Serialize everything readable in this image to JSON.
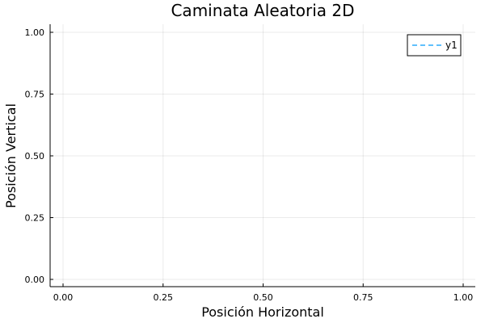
{
  "chart_data": {
    "type": "line",
    "title": "Caminata Aleatoria 2D",
    "xlabel": "Posición Horizontal",
    "ylabel": "Posición Vertical",
    "xlim": [
      0,
      1
    ],
    "ylim": [
      0,
      1
    ],
    "xticks": [
      0,
      0.25,
      0.5,
      0.75,
      1
    ],
    "yticks": [
      0,
      0.25,
      0.5,
      0.75,
      1
    ],
    "xtick_labels": [
      "0.00",
      "0.25",
      "0.50",
      "0.75",
      "1.00"
    ],
    "ytick_labels": [
      "0.00",
      "0.25",
      "0.50",
      "0.75",
      "1.00"
    ],
    "grid": true,
    "legend_position": "top-right",
    "series": [
      {
        "name": "y1",
        "x": [],
        "y": [],
        "color": "#009af9",
        "line_style": "dashed"
      }
    ]
  }
}
